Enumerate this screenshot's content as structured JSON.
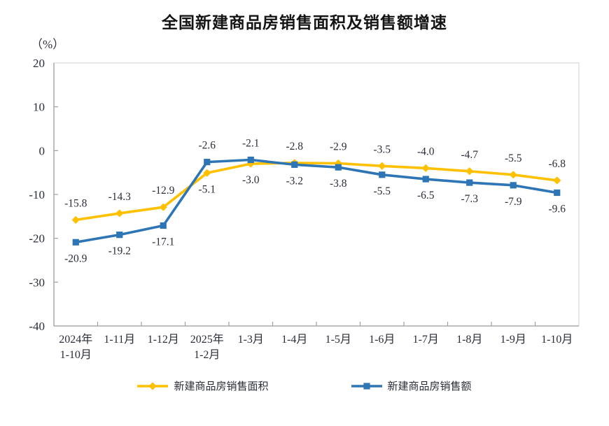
{
  "title": "全国新建商品房销售面积及销售额增速",
  "unit_label": "（%）",
  "colors": {
    "text": "#2b2e38",
    "axis": "#a0a0a0",
    "plot_border": "#d8d8d8",
    "title_text": "#141414"
  },
  "chart_data": {
    "type": "line",
    "title": "全国新建商品房销售面积及销售额增速",
    "ylabel": "（%）",
    "xlabel": "",
    "ylim": [
      -40,
      20
    ],
    "yticks": [
      20,
      10,
      0,
      -10,
      -20,
      -30,
      -40
    ],
    "grid": false,
    "legend_position": "bottom",
    "data_labels": true,
    "categories": [
      "2024年\n1-10月",
      "1-11月",
      "1-12月",
      "2025年\n1-2月",
      "1-3月",
      "1-4月",
      "1-5月",
      "1-6月",
      "1-7月",
      "1-8月",
      "1-9月",
      "1-10月"
    ],
    "series": [
      {
        "name": "新建商品房销售面积",
        "color": "#FFC000",
        "marker": "diamond",
        "values": [
          -15.8,
          -14.3,
          -12.9,
          -5.1,
          -3.0,
          -2.8,
          -2.9,
          -3.5,
          -4.0,
          -4.7,
          -5.5,
          -6.8
        ]
      },
      {
        "name": "新建商品房销售额",
        "color": "#2E75B6",
        "marker": "square",
        "values": [
          -20.9,
          -19.2,
          -17.1,
          -2.6,
          -2.1,
          -3.2,
          -3.8,
          -5.5,
          -6.5,
          -7.3,
          -7.9,
          -9.6
        ]
      }
    ]
  }
}
